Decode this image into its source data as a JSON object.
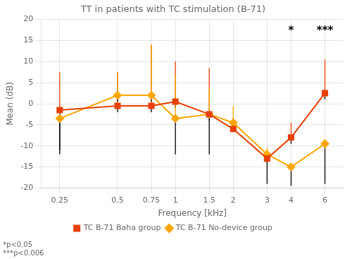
{
  "chart_data": {
    "type": "line",
    "title": "TT in patients with TC stimulation (B-71)",
    "xlabel": "Frequency [kHz]",
    "ylabel": "Mean (dB)",
    "x": [
      0.25,
      0.5,
      0.75,
      1.0,
      1.5,
      2.0,
      3.0,
      4.0,
      6.0
    ],
    "series": [
      {
        "name": "TC B-71 Baha group",
        "color": "#E84000",
        "marker": "square",
        "values": [
          -1.5,
          -0.5,
          -0.5,
          0.5,
          -2.5,
          -6.0,
          -13.0,
          -8.0,
          2.5
        ],
        "error_up": [
          9.0,
          8.0,
          14.5,
          9.5,
          11.0,
          1.0,
          1.0,
          3.5,
          8.0
        ],
        "error_down": [
          9.5,
          1.5,
          1.5,
          1.5,
          1.5,
          0.5,
          1.0,
          1.5,
          1.5
        ]
      },
      {
        "name": "TC B-71 No-device group",
        "color": "#FFA500",
        "marker": "diamond",
        "values": [
          -3.5,
          2.0,
          2.0,
          -3.5,
          -2.5,
          -4.5,
          -12.0,
          -15.0,
          -9.5
        ],
        "error_up": [
          0.5,
          5.5,
          12.0,
          10.5,
          6.0,
          4.0,
          1.5,
          0.5,
          1.0
        ],
        "error_down": [
          8.5,
          1.5,
          1.5,
          8.5,
          9.5,
          0.5,
          7.0,
          4.5,
          9.5
        ]
      }
    ],
    "xlim": [
      0.2,
      7.5
    ],
    "xticks": [
      0.25,
      0.5,
      0.75,
      1,
      1.5,
      2,
      3,
      4,
      6
    ],
    "ylim": [
      -20,
      20
    ],
    "yticks": [
      -20,
      -15,
      -10,
      -5,
      0,
      5,
      10,
      15,
      20
    ],
    "log": "x",
    "grid": true,
    "legend": "bottom",
    "annotations": [
      {
        "text": "*",
        "x": 4.0,
        "y": 18.5
      },
      {
        "text": "***",
        "x": 6.0,
        "y": 18.5
      }
    ],
    "footnotes": [
      "*p<0.05",
      "***p<0.006"
    ]
  }
}
